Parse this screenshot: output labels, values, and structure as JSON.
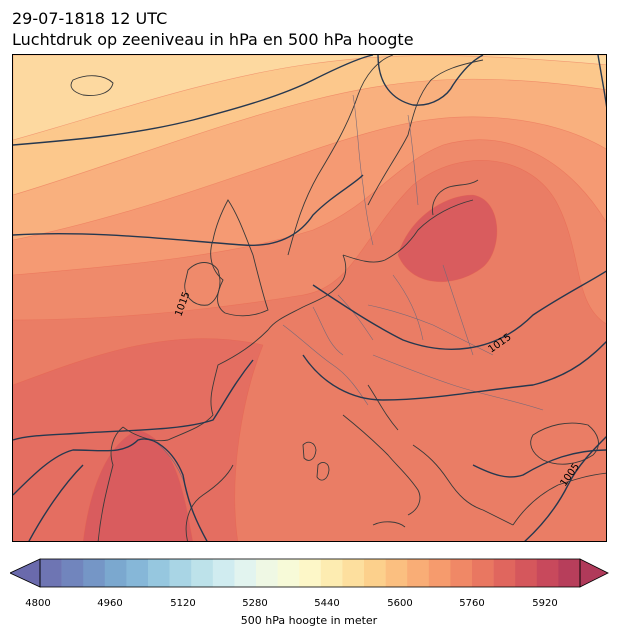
{
  "header": {
    "datetime": "29-07-1818 12 UTC",
    "subtitle": "Luchtdruk op zeeniveau in hPa en 500 hPa hoogte"
  },
  "map": {
    "region": "Europe",
    "isobar_labels": [
      "1015",
      "1015",
      "1005"
    ],
    "fill_colors": [
      "#fdd9a0",
      "#fcc88c",
      "#f9b07e",
      "#f59a73",
      "#ef8a6b",
      "#ea7d65",
      "#e46e61",
      "#d95c5e"
    ],
    "isobar_color": "#26384f",
    "coast_color": "#3a3a3a",
    "border_color": "#7a6a78"
  },
  "colorbar": {
    "label": "500 hPa hoogte in meter",
    "ticks": [
      "4800",
      "4960",
      "5120",
      "5280",
      "5440",
      "5600",
      "5760",
      "5920"
    ],
    "colors": [
      "#6e75b3",
      "#7185bd",
      "#7596c6",
      "#7ba8cf",
      "#86b7d8",
      "#96c7df",
      "#a9d5e5",
      "#bde2ea",
      "#d0ecf0",
      "#e2f4ef",
      "#eff8e4",
      "#f7fad8",
      "#fdf7c8",
      "#fdecb1",
      "#fddf9e",
      "#fcd08c",
      "#fbbf80",
      "#f9ad76",
      "#f69b6d",
      "#f08866",
      "#e97761",
      "#e0665e",
      "#d5575c",
      "#c8495c",
      "#b73e5b"
    ],
    "under_color": "#6a6aac",
    "over_color": "#b03a5a"
  }
}
